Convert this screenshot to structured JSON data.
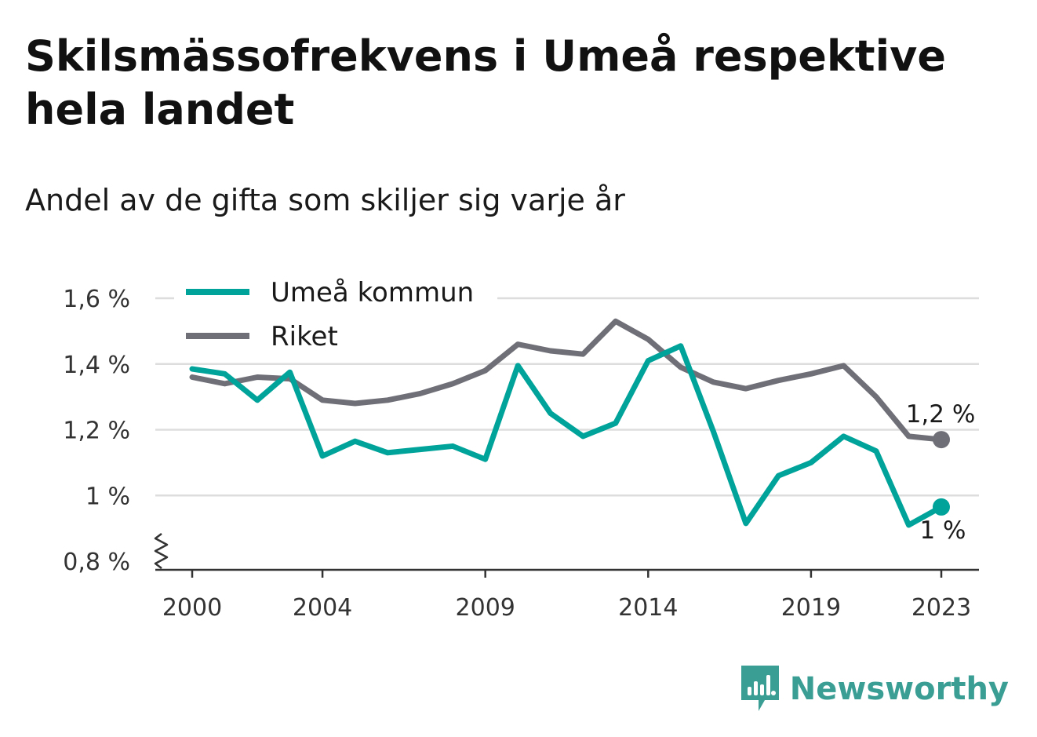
{
  "title": "Skilsmässofrekvens i Umeå respektive hela landet",
  "subtitle": "Andel av de gifta som skiljer sig varje år",
  "brand": {
    "name": "Newsworthy",
    "color": "#3a9e94"
  },
  "colors": {
    "umea": "#00a39a",
    "riket": "#6f6f78",
    "grid": "#dddddd",
    "axis": "#333333"
  },
  "chart_data": {
    "type": "line",
    "x_tick_labels": [
      "2000",
      "2004",
      "2009",
      "2014",
      "2019",
      "2023"
    ],
    "y_tick_labels": [
      "0,8 %",
      "1 %",
      "1,2 %",
      "1,4 %",
      "1,6 %"
    ],
    "x": [
      2000,
      2001,
      2002,
      2003,
      2004,
      2005,
      2006,
      2007,
      2008,
      2009,
      2010,
      2011,
      2012,
      2013,
      2014,
      2015,
      2016,
      2017,
      2018,
      2019,
      2020,
      2021,
      2022,
      2023
    ],
    "series": [
      {
        "name": "Umeå kommun",
        "values": [
          1.385,
          1.37,
          1.29,
          1.375,
          1.12,
          1.165,
          1.13,
          1.14,
          1.15,
          1.11,
          1.395,
          1.25,
          1.18,
          1.22,
          1.41,
          1.455,
          1.195,
          0.915,
          1.06,
          1.1,
          1.18,
          1.135,
          0.91,
          0.965
        ],
        "end_label": "1 %"
      },
      {
        "name": "Riket",
        "values": [
          1.36,
          1.34,
          1.36,
          1.355,
          1.29,
          1.28,
          1.29,
          1.31,
          1.34,
          1.38,
          1.46,
          1.44,
          1.43,
          1.53,
          1.475,
          1.39,
          1.345,
          1.325,
          1.35,
          1.37,
          1.395,
          1.3,
          1.18,
          1.17
        ],
        "end_label": "1,2 %"
      }
    ],
    "xlim": [
      2000,
      2023
    ],
    "ylim": [
      0.8,
      1.6
    ],
    "y_ticks": [
      0.8,
      1.0,
      1.2,
      1.4,
      1.6
    ],
    "x_ticks": [
      2000,
      2004,
      2009,
      2014,
      2019,
      2023
    ],
    "axis_break": true,
    "grid": true,
    "legend": "top-left"
  }
}
